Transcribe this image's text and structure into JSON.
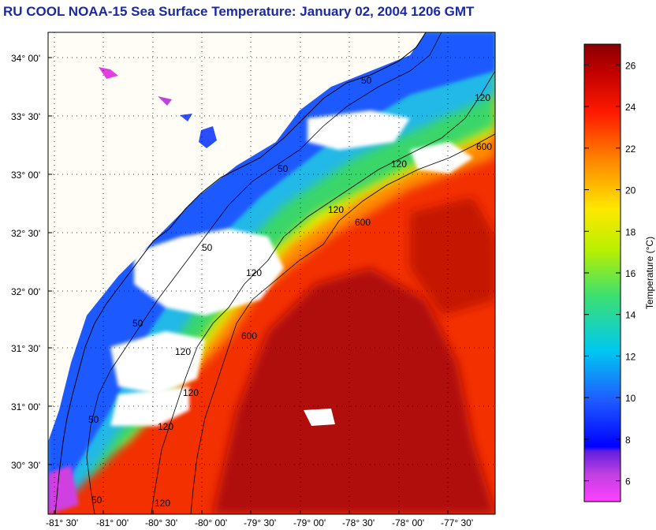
{
  "title": "RU COOL  NOAA-15  Sea Surface Temperature:  January 02, 2004 1206 GMT",
  "colorbar": {
    "label": "Temperature (°C)",
    "min": 5,
    "max": 27,
    "ticks": [
      "6",
      "8",
      "10",
      "12",
      "14",
      "16",
      "18",
      "20",
      "22",
      "24",
      "26"
    ]
  },
  "axes": {
    "lat_labels": [
      "34° 00'",
      "33° 30'",
      "33° 00'",
      "32° 30'",
      "32° 00'",
      "31° 30'",
      "31° 00'",
      "30° 30'"
    ],
    "lon_labels": [
      "-81° 30'",
      "-81° 00'",
      "-80° 30'",
      "-80° 00'",
      "-79° 30'",
      "-79° 00'",
      "-78° 30'",
      "-78° 00'",
      "-77° 30'"
    ]
  },
  "isobaths": {
    "labels_50": [
      "50",
      "50",
      "50",
      "50",
      "50",
      "50"
    ],
    "labels_120": [
      "120",
      "120",
      "120",
      "120",
      "120",
      "120",
      "120",
      "120"
    ],
    "labels_600": [
      "600",
      "600",
      "600"
    ]
  },
  "colors": {
    "title": "#1a2aa6",
    "land": "#fffdf5",
    "warm": "#e60000",
    "hot": "#a80000",
    "cold": "#1e5aff"
  }
}
